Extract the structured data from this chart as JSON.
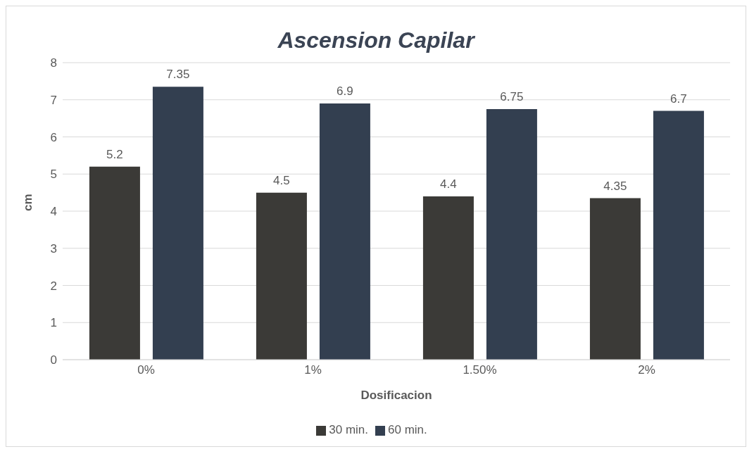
{
  "chart_data": {
    "type": "bar",
    "title": "Ascension Capilar",
    "xlabel": "Dosificacion",
    "ylabel": "cm",
    "categories": [
      "0%",
      "1%",
      "1.50%",
      "2%"
    ],
    "series": [
      {
        "name": "30 min.",
        "color": "#3b3a37",
        "values": [
          5.2,
          4.5,
          4.4,
          4.35
        ]
      },
      {
        "name": "60 min.",
        "color": "#333f50",
        "values": [
          7.35,
          6.9,
          6.75,
          6.7
        ]
      }
    ],
    "ylim": [
      0,
      8
    ],
    "yticks": [
      0,
      1,
      2,
      3,
      4,
      5,
      6,
      7,
      8
    ],
    "grid": "y",
    "legend": "bottom",
    "data_labels": true
  }
}
